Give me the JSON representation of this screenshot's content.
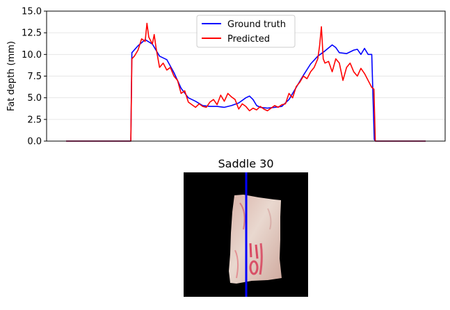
{
  "chart_data": [
    {
      "type": "line",
      "ylabel": "Fat depth (mm)",
      "ylim": [
        0,
        15
      ],
      "xlim": [
        0,
        1
      ],
      "yticks": [
        "0.0",
        "2.5",
        "5.0",
        "7.5",
        "10.0",
        "12.5",
        "15.0"
      ],
      "grid": "horizontal",
      "legend": "top-center",
      "series": [
        {
          "name": "Ground truth",
          "color": "#0000ff",
          "x": [
            0.0,
            0.18,
            0.183,
            0.2,
            0.22,
            0.24,
            0.26,
            0.28,
            0.3,
            0.32,
            0.34,
            0.36,
            0.38,
            0.4,
            0.42,
            0.44,
            0.46,
            0.48,
            0.5,
            0.51,
            0.52,
            0.53,
            0.54,
            0.56,
            0.58,
            0.6,
            0.62,
            0.64,
            0.66,
            0.68,
            0.7,
            0.72,
            0.74,
            0.75,
            0.76,
            0.78,
            0.8,
            0.81,
            0.82,
            0.83,
            0.84,
            0.85,
            0.857,
            0.86,
            1.0
          ],
          "values": [
            0,
            0,
            10.2,
            11.0,
            11.7,
            11.2,
            9.8,
            9.4,
            7.9,
            6.1,
            5.0,
            4.6,
            4.1,
            4.0,
            4.0,
            3.9,
            4.1,
            4.4,
            5.0,
            5.2,
            4.8,
            4.1,
            3.9,
            3.8,
            3.9,
            4.0,
            4.8,
            6.2,
            7.6,
            8.9,
            9.8,
            10.4,
            11.1,
            10.8,
            10.2,
            10.1,
            10.5,
            10.6,
            10.0,
            10.7,
            10.0,
            10.0,
            0.2,
            0,
            0
          ]
        },
        {
          "name": "Predicted",
          "color": "#ff0000",
          "x": [
            0.0,
            0.18,
            0.183,
            0.19,
            0.2,
            0.21,
            0.22,
            0.225,
            0.23,
            0.24,
            0.245,
            0.25,
            0.26,
            0.27,
            0.28,
            0.29,
            0.3,
            0.31,
            0.32,
            0.33,
            0.34,
            0.35,
            0.36,
            0.37,
            0.38,
            0.39,
            0.4,
            0.41,
            0.42,
            0.43,
            0.44,
            0.45,
            0.46,
            0.47,
            0.48,
            0.49,
            0.5,
            0.51,
            0.52,
            0.53,
            0.54,
            0.55,
            0.56,
            0.57,
            0.58,
            0.59,
            0.6,
            0.61,
            0.62,
            0.63,
            0.64,
            0.65,
            0.66,
            0.67,
            0.68,
            0.69,
            0.7,
            0.705,
            0.71,
            0.715,
            0.72,
            0.73,
            0.74,
            0.75,
            0.76,
            0.77,
            0.78,
            0.79,
            0.8,
            0.81,
            0.82,
            0.83,
            0.84,
            0.85,
            0.856,
            0.86,
            1.0
          ],
          "values": [
            0,
            0,
            9.5,
            9.8,
            10.5,
            11.8,
            11.5,
            13.6,
            12.0,
            11.2,
            12.3,
            10.8,
            8.5,
            9.0,
            8.2,
            8.5,
            7.5,
            7.0,
            5.5,
            5.8,
            4.5,
            4.2,
            3.9,
            4.3,
            4.0,
            3.9,
            4.5,
            4.8,
            4.2,
            5.3,
            4.6,
            5.5,
            5.1,
            4.8,
            3.7,
            4.3,
            4.0,
            3.5,
            3.8,
            3.6,
            4.0,
            3.7,
            3.5,
            3.8,
            4.1,
            3.9,
            4.2,
            4.3,
            5.5,
            5.0,
            6.3,
            6.8,
            7.5,
            7.2,
            8.0,
            8.5,
            9.5,
            11.0,
            13.2,
            9.5,
            9.0,
            9.2,
            8.0,
            9.5,
            9.0,
            7.0,
            8.5,
            9.0,
            8.0,
            7.5,
            8.4,
            7.8,
            7.0,
            6.2,
            6.0,
            0,
            0
          ]
        }
      ]
    },
    {
      "type": "image",
      "title": "Saddle 30",
      "marker_line_color": "#0000ff"
    }
  ]
}
